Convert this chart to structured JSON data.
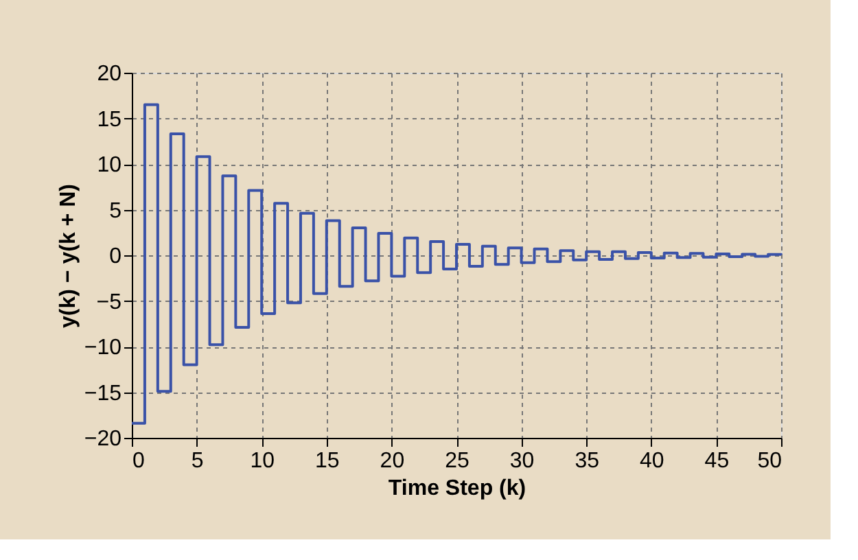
{
  "chart_data": {
    "type": "step",
    "xlabel": "Time Step (k)",
    "ylabel": "y(k) − y(k + N)",
    "x": [
      0,
      1,
      2,
      3,
      4,
      5,
      6,
      7,
      8,
      9,
      10,
      11,
      12,
      13,
      14,
      15,
      16,
      17,
      18,
      19,
      20,
      21,
      22,
      23,
      24,
      25,
      26,
      27,
      28,
      29,
      30,
      31,
      32,
      33,
      34,
      35,
      36,
      37,
      38,
      39,
      40,
      41,
      42,
      43,
      44,
      45,
      46,
      47,
      48,
      49,
      50
    ],
    "series": [
      {
        "color": "#3a52a8",
        "values": [
          -18.4,
          16.5,
          -14.9,
          13.3,
          -12.0,
          10.8,
          -9.8,
          8.7,
          -7.9,
          7.1,
          -6.4,
          5.7,
          -5.2,
          4.6,
          -4.2,
          3.8,
          -3.4,
          3.0,
          -2.8,
          2.4,
          -2.3,
          1.9,
          -1.9,
          1.5,
          -1.5,
          1.2,
          -1.2,
          1.0,
          -1.0,
          0.8,
          -0.8,
          0.7,
          -0.7,
          0.5,
          -0.5,
          0.4,
          -0.45,
          0.4,
          -0.35,
          0.3,
          -0.3,
          0.25,
          -0.25,
          0.2,
          -0.2,
          0.15,
          -0.15,
          0.12,
          -0.12,
          0.1,
          0.05
        ]
      }
    ],
    "xlim": [
      0,
      50
    ],
    "xticks": [
      0,
      5,
      10,
      15,
      20,
      25,
      30,
      35,
      40,
      45,
      50
    ],
    "ylim": [
      -20,
      20
    ],
    "yticks": [
      -20,
      -15,
      -10,
      -5,
      0,
      5,
      10,
      15,
      20
    ],
    "grid": true,
    "line_style": "solid",
    "marker": "none"
  }
}
